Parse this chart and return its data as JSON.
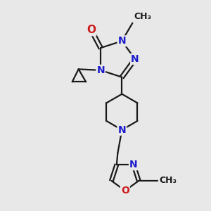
{
  "bg_color": "#e8e8e8",
  "bond_color": "#1a1a1a",
  "N_color": "#1a1acc",
  "O_color": "#cc1a1a",
  "C_color": "#1a1a1a",
  "bond_width": 1.6,
  "font_size_atom": 10,
  "fig_size": [
    3.0,
    3.0
  ],
  "dpi": 100,
  "xlim": [
    0,
    10
  ],
  "ylim": [
    0,
    10
  ]
}
